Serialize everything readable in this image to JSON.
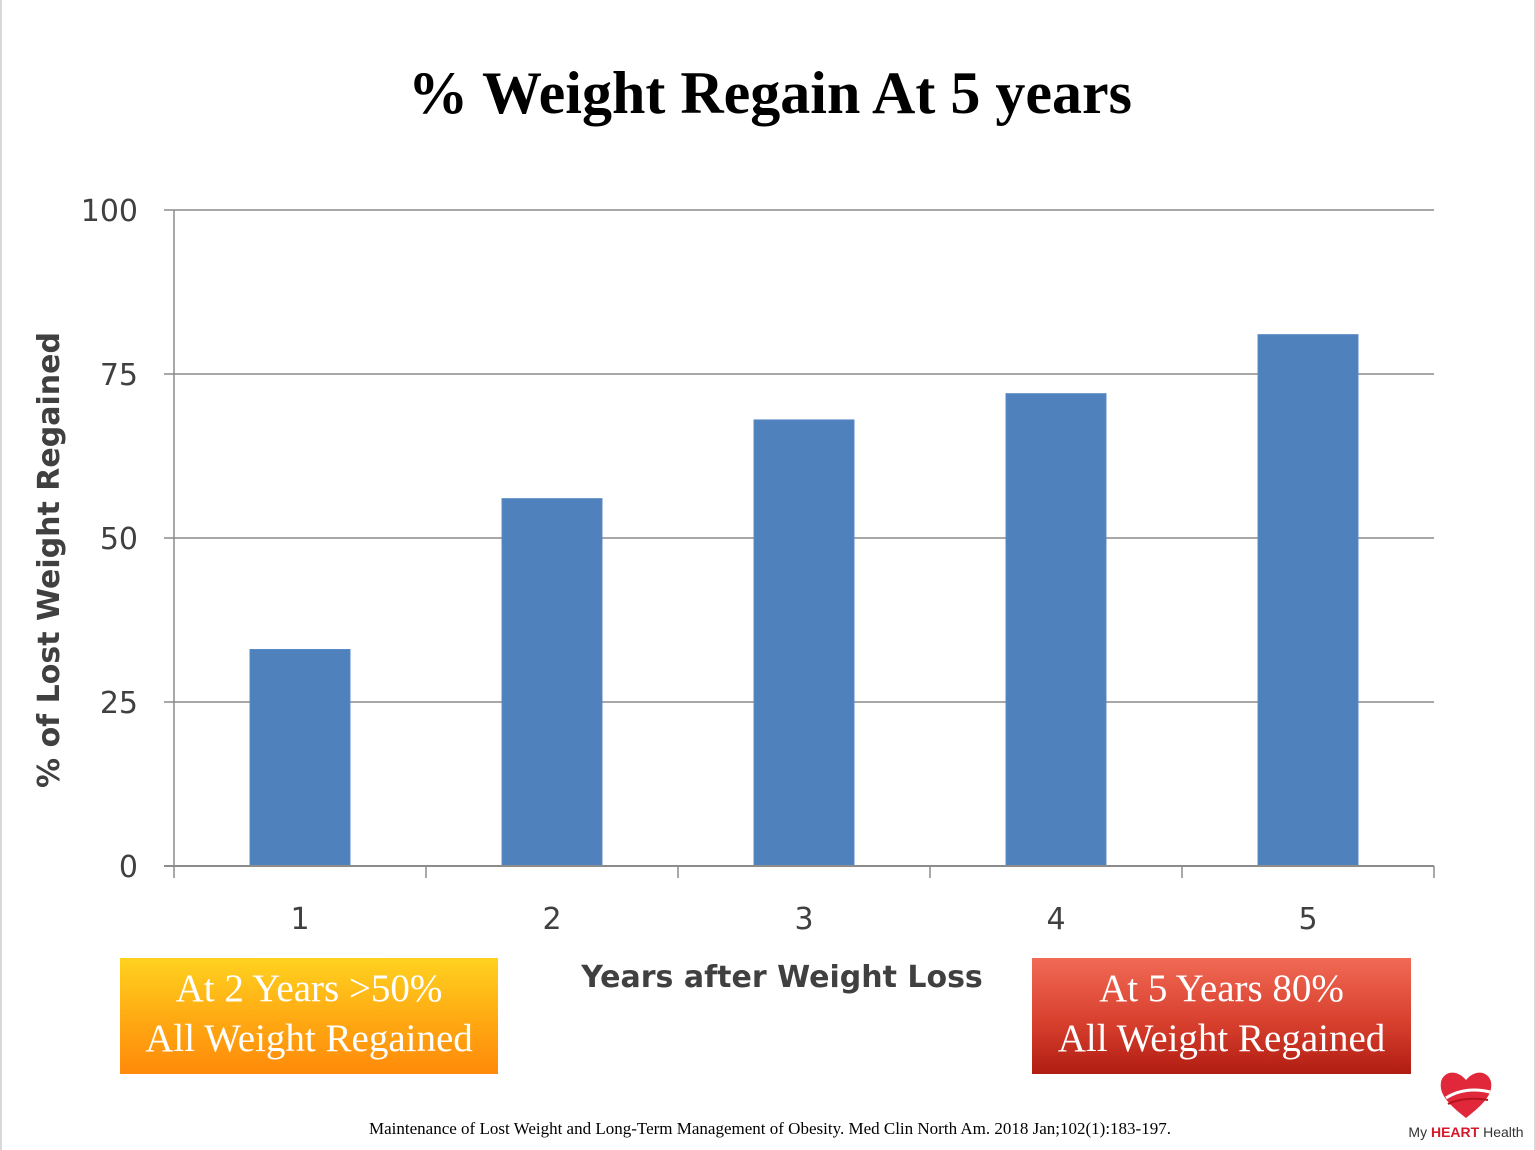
{
  "title": "% Weight Regain At 5 years",
  "chart_data": {
    "type": "bar",
    "categories": [
      "1",
      "2",
      "3",
      "4",
      "5"
    ],
    "values": [
      33,
      56,
      68,
      72,
      81
    ],
    "xlabel": "Years after Weight Loss",
    "ylabel": "% of Lost Weight Regained",
    "ylim": [
      0,
      100
    ],
    "yticks": [
      "0",
      "25",
      "50",
      "75",
      "100"
    ],
    "grid": true,
    "bar_color": "#4f81bd"
  },
  "callouts": {
    "left": {
      "line1": "At 2 Years >50%",
      "line2": "All Weight Regained",
      "color": "#ffa812"
    },
    "right": {
      "line1": "At 5 Years 80%",
      "line2": "All Weight Regained",
      "color": "#d8402e"
    }
  },
  "citation": "Maintenance of Lost Weight and Long-Term Management of Obesity. Med Clin North Am. 2018 Jan;102(1):183-197.",
  "logo": {
    "prefix": "My ",
    "brand": "HEART",
    "suffix": " Health",
    "icon": "heart-icon",
    "brand_color": "#d6192a"
  }
}
